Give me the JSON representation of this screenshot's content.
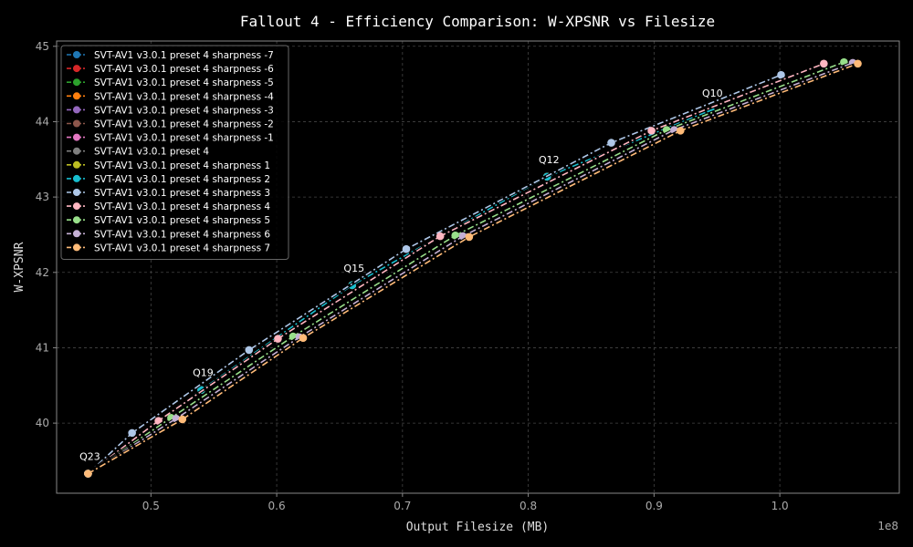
{
  "chart_data": {
    "type": "line",
    "title": "Fallout 4 - Efficiency Comparison: W-XPSNR vs Filesize",
    "xlabel": "Output Filesize (MB)",
    "ylabel": "W-XPSNR",
    "x_exponent_label": "1e8",
    "xlim": [
      42500000,
      109500000
    ],
    "ylim": [
      39.07,
      45.07
    ],
    "xticks": [
      50000000,
      60000000,
      70000000,
      80000000,
      90000000,
      100000000
    ],
    "xtick_labels": [
      "0.5",
      "0.6",
      "0.7",
      "0.8",
      "0.9",
      "1.0"
    ],
    "yticks": [
      40,
      41,
      42,
      43,
      44,
      45
    ],
    "ytick_labels": [
      "40",
      "41",
      "42",
      "43",
      "44",
      "45"
    ],
    "grid": true,
    "legend_position": "top-left",
    "quality_labels": [
      {
        "text": "Q23",
        "x": 45000000,
        "y": 39.33
      },
      {
        "text": "Q19",
        "x": 54000000,
        "y": 40.44
      },
      {
        "text": "Q15",
        "x": 66000000,
        "y": 41.83
      },
      {
        "text": "Q12",
        "x": 81500000,
        "y": 43.27
      },
      {
        "text": "Q10",
        "x": 94500000,
        "y": 44.15
      }
    ],
    "series": [
      {
        "name": "SVT-AV1 v3.0.1 preset 4 sharpness -7",
        "color": "#1f77b4",
        "x": [
          45000000,
          54000000,
          66000000,
          81500000,
          94500000
        ],
        "y": [
          39.33,
          40.44,
          41.83,
          43.27,
          44.15
        ]
      },
      {
        "name": "SVT-AV1 v3.0.1 preset 4 sharpness -6",
        "color": "#d62728",
        "x": [
          45000000,
          54000000,
          66000000,
          81500000,
          94500000
        ],
        "y": [
          39.33,
          40.44,
          41.83,
          43.27,
          44.15
        ]
      },
      {
        "name": "SVT-AV1 v3.0.1 preset 4 sharpness -5",
        "color": "#2ca02c",
        "x": [
          45000000,
          54000000,
          66000000,
          81500000,
          94500000
        ],
        "y": [
          39.33,
          40.44,
          41.83,
          43.27,
          44.15
        ]
      },
      {
        "name": "SVT-AV1 v3.0.1 preset 4 sharpness -4",
        "color": "#ff7f0e",
        "x": [
          45000000,
          54000000,
          66000000,
          81500000,
          94500000
        ],
        "y": [
          39.33,
          40.44,
          41.83,
          43.27,
          44.15
        ]
      },
      {
        "name": "SVT-AV1 v3.0.1 preset 4 sharpness -3",
        "color": "#9467bd",
        "x": [
          45000000,
          54000000,
          66000000,
          81500000,
          94500000
        ],
        "y": [
          39.33,
          40.44,
          41.83,
          43.27,
          44.15
        ]
      },
      {
        "name": "SVT-AV1 v3.0.1 preset 4 sharpness -2",
        "color": "#8c564b",
        "x": [
          45000000,
          54000000,
          66000000,
          81500000,
          94500000
        ],
        "y": [
          39.33,
          40.44,
          41.83,
          43.27,
          44.15
        ]
      },
      {
        "name": "SVT-AV1 v3.0.1 preset 4 sharpness -1",
        "color": "#e377c2",
        "x": [
          45000000,
          54000000,
          66000000,
          81500000,
          94500000
        ],
        "y": [
          39.33,
          40.44,
          41.83,
          43.27,
          44.15
        ]
      },
      {
        "name": "SVT-AV1 v3.0.1 preset 4",
        "color": "#7f7f7f",
        "x": [
          45000000,
          54000000,
          66000000,
          81500000,
          94500000
        ],
        "y": [
          39.33,
          40.44,
          41.83,
          43.27,
          44.15
        ]
      },
      {
        "name": "SVT-AV1 v3.0.1 preset 4 sharpness 1",
        "color": "#bcbd22",
        "x": [
          45000000,
          54000000,
          66000000,
          81500000,
          94500000
        ],
        "y": [
          39.33,
          40.44,
          41.83,
          43.27,
          44.15
        ]
      },
      {
        "name": "SVT-AV1 v3.0.1 preset 4 sharpness 2",
        "color": "#17becf",
        "x": [
          45000000,
          54000000,
          66000000,
          81500000,
          94500000
        ],
        "y": [
          39.33,
          40.44,
          41.83,
          43.27,
          44.15
        ]
      },
      {
        "name": "SVT-AV1 v3.0.1 preset 4 sharpness 3",
        "color": "#aec7e8",
        "x": [
          45000000,
          48500000,
          57800000,
          70300000,
          86600000,
          100100000
        ],
        "y": [
          39.33,
          39.87,
          40.97,
          42.31,
          43.72,
          44.62
        ]
      },
      {
        "name": "SVT-AV1 v3.0.1 preset 4 sharpness 4",
        "color": "#ffb6c1",
        "x": [
          45000000,
          50600000,
          60100000,
          73000000,
          89800000,
          103500000
        ],
        "y": [
          39.33,
          40.03,
          41.12,
          42.48,
          43.88,
          44.77
        ]
      },
      {
        "name": "SVT-AV1 v3.0.1 preset 4 sharpness 5",
        "color": "#98df8a",
        "x": [
          45000000,
          51600000,
          61300000,
          74200000,
          91000000,
          105100000
        ],
        "y": [
          39.33,
          40.07,
          41.15,
          42.49,
          43.89,
          44.79
        ]
      },
      {
        "name": "SVT-AV1 v3.0.1 preset 4 sharpness 6",
        "color": "#c5b0d5",
        "x": [
          45000000,
          52000000,
          61800000,
          74800000,
          91600000,
          105800000
        ],
        "y": [
          39.33,
          40.06,
          41.14,
          42.48,
          43.89,
          44.78
        ]
      },
      {
        "name": "SVT-AV1 v3.0.1 preset 4 sharpness 7",
        "color": "#ffbb78",
        "x": [
          45000000,
          52500000,
          62100000,
          75300000,
          92100000,
          106200000
        ],
        "y": [
          39.33,
          40.05,
          41.13,
          42.47,
          43.88,
          44.77
        ]
      }
    ]
  }
}
